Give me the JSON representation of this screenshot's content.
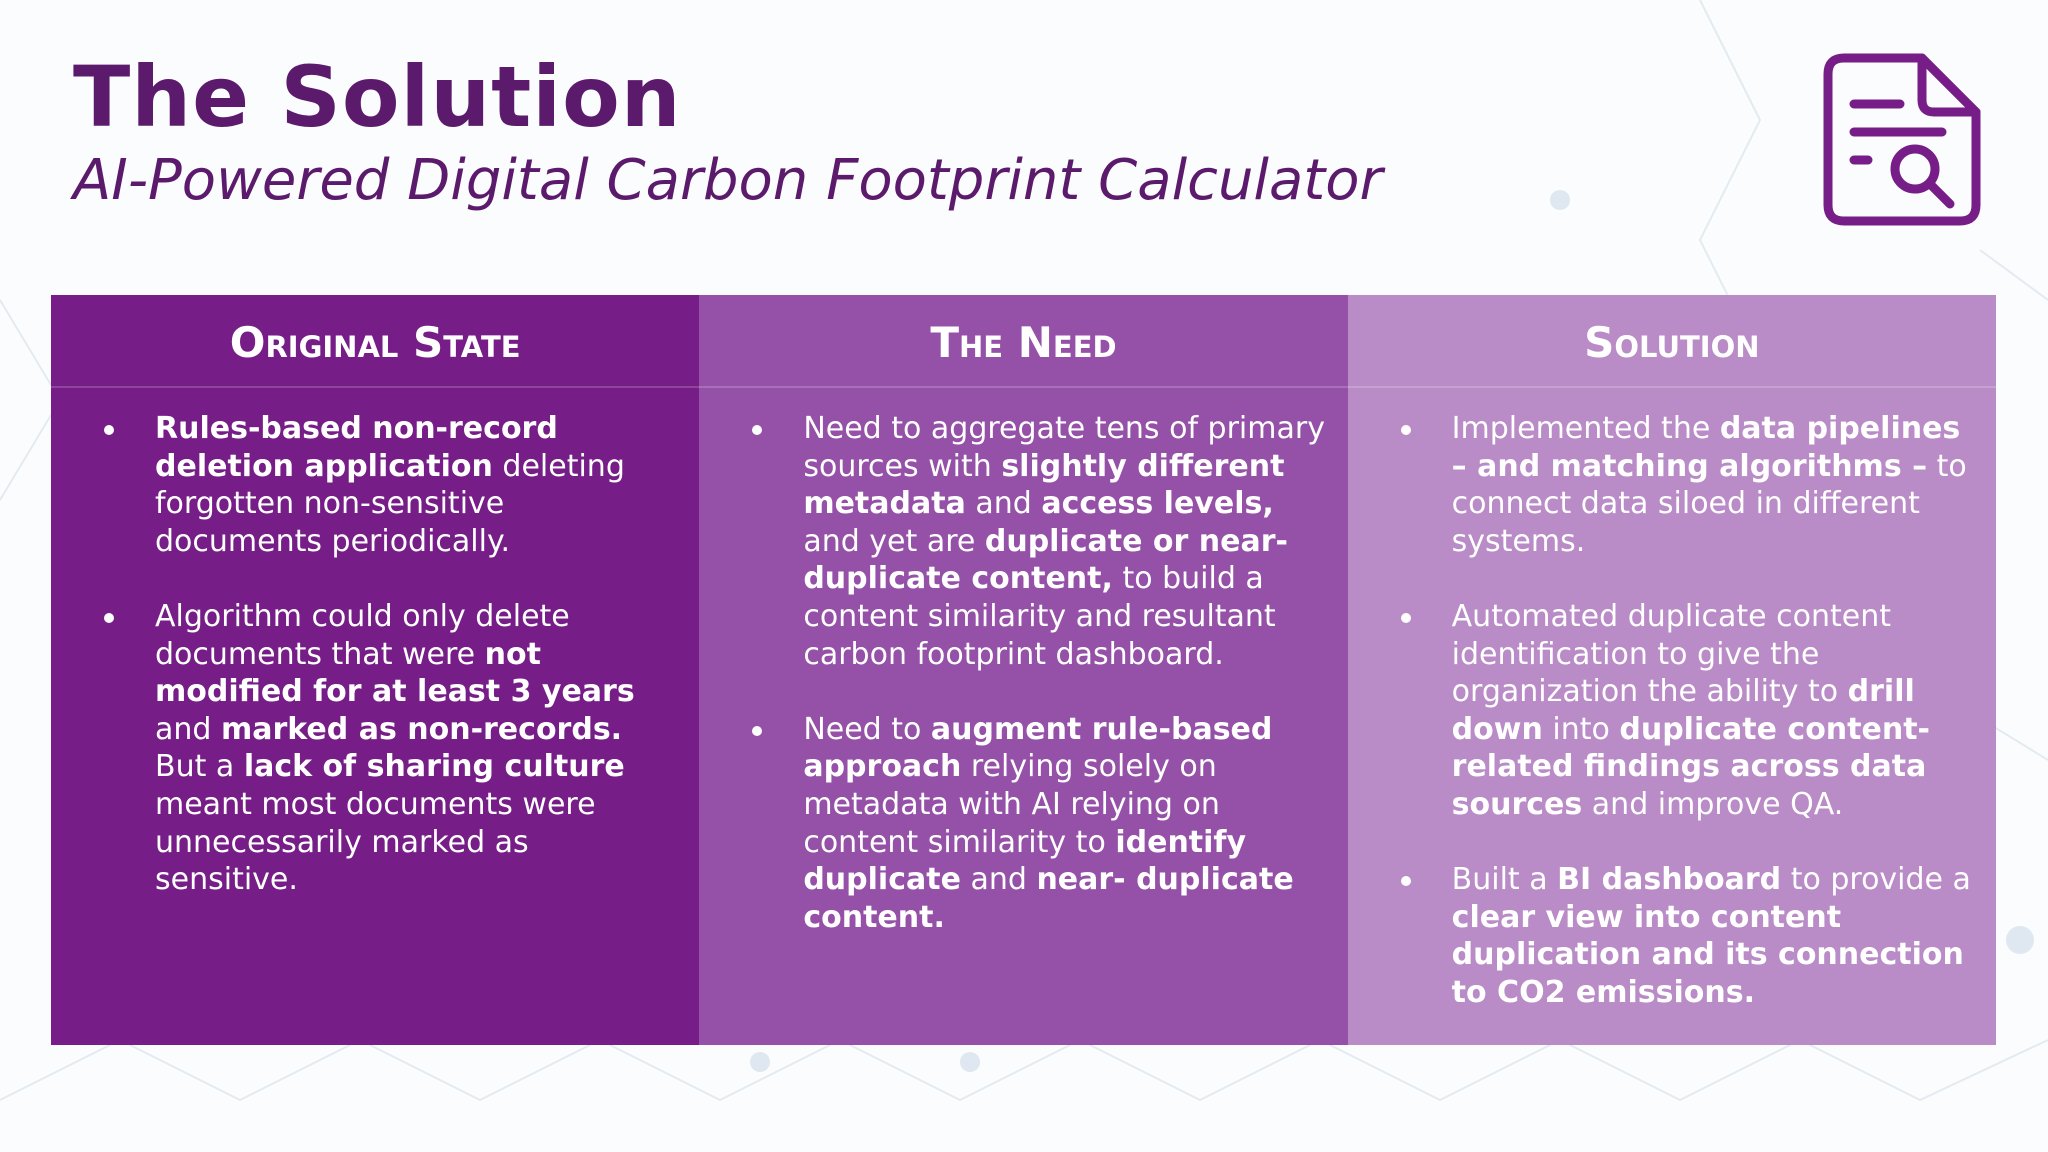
{
  "header": {
    "title": "The Solution",
    "subtitle": "AI-Powered Digital Carbon Footprint Calculator"
  },
  "columns": [
    {
      "heading": "Original State",
      "color": "#761d87",
      "bullets": [
        {
          "runs": [
            {
              "text": "Rules-based non-record deletion application",
              "bold": true
            },
            {
              "text": " deleting forgotten non-sensitive documents periodically.",
              "bold": false
            }
          ]
        },
        {
          "runs": [
            {
              "text": "Algorithm could only delete documents that were ",
              "bold": false
            },
            {
              "text": "not modified for at least 3 years",
              "bold": true
            },
            {
              "text": " and ",
              "bold": false
            },
            {
              "text": "marked as non-records.",
              "bold": true
            },
            {
              "text": " But a ",
              "bold": false
            },
            {
              "text": "lack of sharing culture",
              "bold": true
            },
            {
              "text": " meant most documents were unnecessarily marked as sensitive.",
              "bold": false
            }
          ]
        }
      ]
    },
    {
      "heading": "The Need",
      "color": "#9550a7",
      "bullets": [
        {
          "runs": [
            {
              "text": "Need to aggregate tens of primary sources with ",
              "bold": false
            },
            {
              "text": "slightly different metadata",
              "bold": true
            },
            {
              "text": " and ",
              "bold": false
            },
            {
              "text": "access levels,",
              "bold": true
            },
            {
              "text": " and yet are ",
              "bold": false
            },
            {
              "text": "duplicate or near-duplicate content,",
              "bold": true
            },
            {
              "text": " to build a content similarity and resultant carbon footprint dashboard.",
              "bold": false
            }
          ]
        },
        {
          "runs": [
            {
              "text": "Need to ",
              "bold": false
            },
            {
              "text": "augment rule-based approach",
              "bold": true
            },
            {
              "text": " relying solely on metadata with AI relying on content similarity to ",
              "bold": false
            },
            {
              "text": "identify duplicate",
              "bold": true
            },
            {
              "text": " and ",
              "bold": false
            },
            {
              "text": "near- duplicate content.",
              "bold": true
            }
          ]
        }
      ]
    },
    {
      "heading": "Solution",
      "color": "#b98bc7",
      "bullets": [
        {
          "runs": [
            {
              "text": "Implemented the ",
              "bold": false
            },
            {
              "text": "data pipelines – and matching algorithms –",
              "bold": true
            },
            {
              "text": " to connect data siloed in different systems.",
              "bold": false
            }
          ]
        },
        {
          "runs": [
            {
              "text": "Automated duplicate content identification to give the organization the ability to ",
              "bold": false
            },
            {
              "text": "drill down",
              "bold": true
            },
            {
              "text": " into ",
              "bold": false
            },
            {
              "text": "duplicate content-related findings across data sources",
              "bold": true
            },
            {
              "text": " and improve QA.",
              "bold": false
            }
          ]
        },
        {
          "runs": [
            {
              "text": "Built a ",
              "bold": false
            },
            {
              "text": "BI dashboard",
              "bold": true
            },
            {
              "text": " to provide a ",
              "bold": false
            },
            {
              "text": "clear view into content duplication and its connection to CO2 emissions.",
              "bold": true
            }
          ]
        }
      ]
    }
  ]
}
